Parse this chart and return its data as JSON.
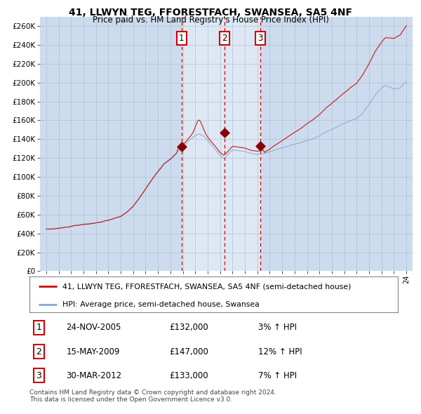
{
  "title": "41, LLWYN TEG, FFORESTFACH, SWANSEA, SA5 4NF",
  "subtitle": "Price paid vs. HM Land Registry's House Price Index (HPI)",
  "red_line_label": "41, LLWYN TEG, FFORESTFACH, SWANSEA, SA5 4NF (semi-detached house)",
  "blue_line_label": "HPI: Average price, semi-detached house, Swansea",
  "transactions": [
    {
      "num": 1,
      "date": "24-NOV-2005",
      "price": 132000,
      "pct": "3%",
      "dir": "↑"
    },
    {
      "num": 2,
      "date": "15-MAY-2009",
      "price": 147000,
      "pct": "12%",
      "dir": "↑"
    },
    {
      "num": 3,
      "date": "30-MAR-2012",
      "price": 133000,
      "pct": "7%",
      "dir": "↑"
    }
  ],
  "transaction_dates_decimal": [
    2005.9,
    2009.37,
    2012.25
  ],
  "transaction_prices": [
    132000,
    147000,
    133000
  ],
  "ylim": [
    0,
    270000
  ],
  "yticks": [
    0,
    20000,
    40000,
    60000,
    80000,
    100000,
    120000,
    140000,
    160000,
    180000,
    200000,
    220000,
    240000,
    260000
  ],
  "start_year": 1995,
  "end_year": 2024,
  "bg_color": "#ccdcee",
  "red_color": "#cc0000",
  "blue_color": "#88aacc",
  "grid_color": "#aabbcc",
  "vline_color": "#cc0000",
  "highlight_bg": "#dde8f4",
  "footer_text": "Contains HM Land Registry data © Crown copyright and database right 2024.\nThis data is licensed under the Open Government Licence v3.0."
}
